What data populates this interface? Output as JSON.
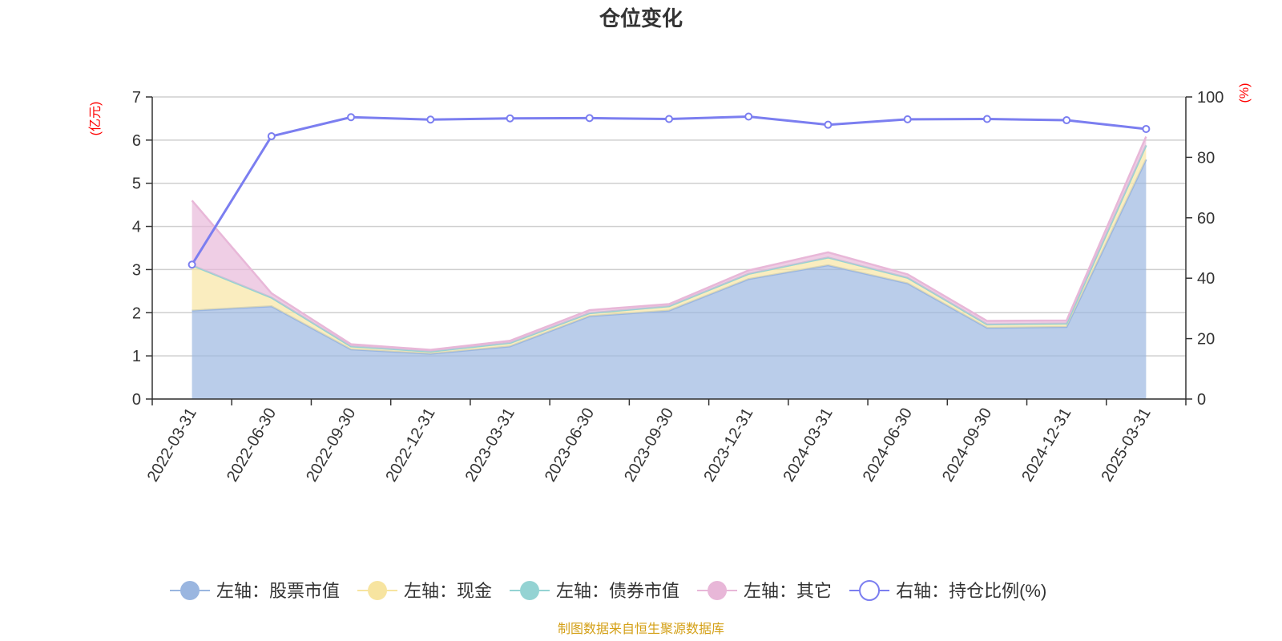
{
  "title": "仓位变化",
  "source": "制图数据来自恒生聚源数据库",
  "source_color": "#d4a017",
  "unit_color": "#ff0000",
  "chart_data": {
    "type": "area",
    "stacked": true,
    "categories": [
      "2022-03-31",
      "2022-06-30",
      "2022-09-30",
      "2022-12-31",
      "2023-03-31",
      "2023-06-30",
      "2023-09-30",
      "2023-12-31",
      "2024-03-31",
      "2024-06-30",
      "2024-09-30",
      "2024-12-31",
      "2025-03-31"
    ],
    "left_axis": {
      "label": "(亿元)",
      "min": 0,
      "max": 7,
      "ticks": [
        "0",
        "1",
        "2",
        "3",
        "4",
        "5",
        "6",
        "7"
      ]
    },
    "right_axis": {
      "label": "(%)",
      "min": 0,
      "max": 100,
      "ticks": [
        "0",
        "20",
        "40",
        "60",
        "80",
        "100"
      ]
    },
    "grid": true,
    "legend_position": "bottom",
    "series": [
      {
        "name": "左轴：股票市值",
        "axis": "left",
        "kind": "area",
        "color": "#9ab6e0",
        "values": [
          2.05,
          2.15,
          1.15,
          1.05,
          1.22,
          1.92,
          2.05,
          2.78,
          3.1,
          2.68,
          1.65,
          1.67,
          5.55
        ]
      },
      {
        "name": "左轴：现金",
        "axis": "left",
        "kind": "area",
        "color": "#f7e4a0",
        "values": [
          1.05,
          0.2,
          0.07,
          0.05,
          0.08,
          0.07,
          0.1,
          0.12,
          0.18,
          0.13,
          0.08,
          0.08,
          0.33
        ]
      },
      {
        "name": "左轴：债券市值",
        "axis": "left",
        "kind": "area",
        "color": "#94d3d3",
        "values": [
          0,
          0,
          0,
          0,
          0,
          0,
          0,
          0,
          0,
          0,
          0,
          0,
          0
        ]
      },
      {
        "name": "左轴：其它",
        "axis": "left",
        "kind": "area",
        "color": "#e8b7d8",
        "values": [
          1.5,
          0.1,
          0.05,
          0.04,
          0.05,
          0.07,
          0.05,
          0.08,
          0.12,
          0.08,
          0.08,
          0.07,
          0.2
        ]
      },
      {
        "name": "右轴：持仓比例(%)",
        "axis": "right",
        "kind": "line",
        "color": "#7b7ef0",
        "values": [
          44.5,
          87.0,
          93.3,
          92.5,
          92.9,
          93.0,
          92.7,
          93.5,
          90.8,
          92.6,
          92.7,
          92.3,
          89.4
        ]
      }
    ]
  }
}
